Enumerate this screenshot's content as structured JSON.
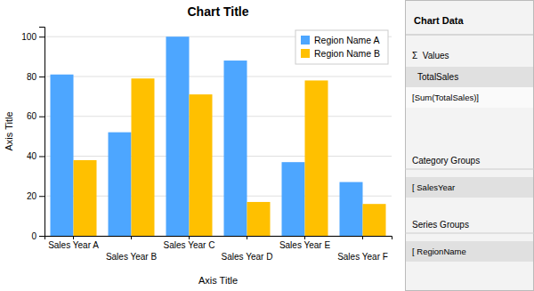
{
  "chart_data": {
    "type": "bar",
    "title": "Chart Title",
    "xlabel": "Axis Title",
    "ylabel": "Axis Title",
    "categories": [
      "Sales Year A",
      "Sales Year B",
      "Sales Year C",
      "Sales Year D",
      "Sales Year E",
      "Sales Year F"
    ],
    "series": [
      {
        "name": "Region Name A",
        "color": "#4da6ff",
        "values": [
          81,
          52,
          100,
          88,
          37,
          27
        ]
      },
      {
        "name": "Region Name B",
        "color": "#FFC000",
        "values": [
          38,
          79,
          71,
          17,
          78,
          16
        ]
      }
    ],
    "ylim": [
      0,
      105
    ],
    "yticks": [
      0,
      20,
      40,
      60,
      80,
      100
    ],
    "grid": true,
    "legend": "upper right",
    "annotations": [
      "Chart Data",
      "Σ  Values",
      "TotalSales",
      "[Sum(TotalSales)]",
      "Category Groups",
      "[ SalesYear",
      "Series Groups",
      "[ RegionName"
    ]
  }
}
